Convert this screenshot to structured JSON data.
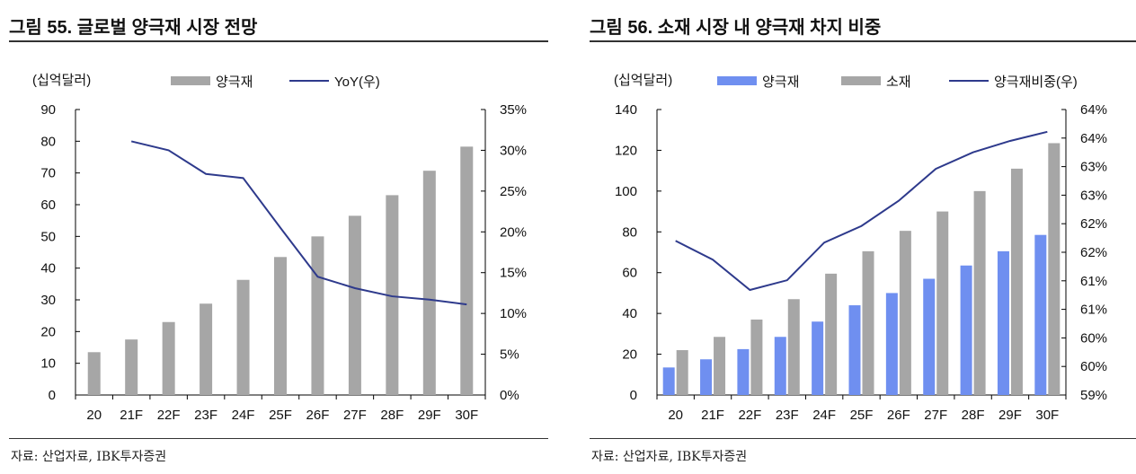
{
  "chart_data": [
    {
      "type": "bar+line",
      "title": "그림 55. 글로벌 양극재 시장 전망",
      "unit_label": "(십억달러)",
      "categories": [
        "20",
        "21F",
        "22F",
        "23F",
        "24F",
        "25F",
        "26F",
        "27F",
        "28F",
        "29F",
        "30F"
      ],
      "series": [
        {
          "name": "양극재",
          "type": "bar",
          "axis": "left",
          "color": "#a6a6a6",
          "values": [
            13.5,
            17.5,
            23,
            28.8,
            36.3,
            43.5,
            50,
            56.5,
            63,
            70.7,
            78.3
          ]
        },
        {
          "name": "YoY(우)",
          "type": "line",
          "axis": "right",
          "color": "#2e3a8c",
          "values": [
            null,
            31.1,
            30.0,
            27.1,
            26.6,
            20.5,
            14.5,
            13.1,
            12.1,
            11.7,
            11.1
          ]
        }
      ],
      "ylim": [
        0,
        90
      ],
      "yticks": [
        "0",
        "10",
        "20",
        "30",
        "40",
        "50",
        "60",
        "70",
        "80",
        "90"
      ],
      "y2lim": [
        0,
        35
      ],
      "y2ticks": [
        "0%",
        "5%",
        "10%",
        "15%",
        "20%",
        "25%",
        "30%",
        "35%"
      ],
      "legend": "top",
      "source": "자료: 산업자료, IBK투자증권"
    },
    {
      "type": "bar+line",
      "title": "그림 56. 소재 시장 내 양극재 차지 비중",
      "unit_label": "(십억달러)",
      "categories": [
        "20",
        "21F",
        "22F",
        "23F",
        "24F",
        "25F",
        "26F",
        "27F",
        "28F",
        "29F",
        "30F"
      ],
      "series": [
        {
          "name": "양극재",
          "type": "bar",
          "axis": "left",
          "color": "#6f8ff0",
          "values": [
            13.5,
            17.5,
            22.5,
            28.5,
            36,
            44,
            50,
            57,
            63.5,
            70.5,
            78.5
          ]
        },
        {
          "name": "소재",
          "type": "bar",
          "axis": "left",
          "color": "#a6a6a6",
          "values": [
            22,
            28.5,
            37,
            47,
            59.5,
            70.5,
            80.5,
            90,
            100,
            111,
            123.5
          ]
        },
        {
          "name": "양극재비중(우)",
          "type": "line",
          "axis": "right",
          "color": "#2e3a8c",
          "values": [
            61.7,
            61.37,
            60.84,
            61.01,
            61.67,
            61.96,
            62.4,
            62.96,
            63.25,
            63.45,
            63.61
          ]
        }
      ],
      "ylim": [
        0,
        140
      ],
      "yticks": [
        "0",
        "20",
        "40",
        "60",
        "80",
        "100",
        "120",
        "140"
      ],
      "y2lim": [
        59,
        64
      ],
      "y2ticks": [
        "59%",
        "60%",
        "60%",
        "61%",
        "61%",
        "62%",
        "62%",
        "63%",
        "63%",
        "64%",
        "64%"
      ],
      "legend": "top",
      "source": "자료: 산업자료, IBK투자증권"
    }
  ]
}
